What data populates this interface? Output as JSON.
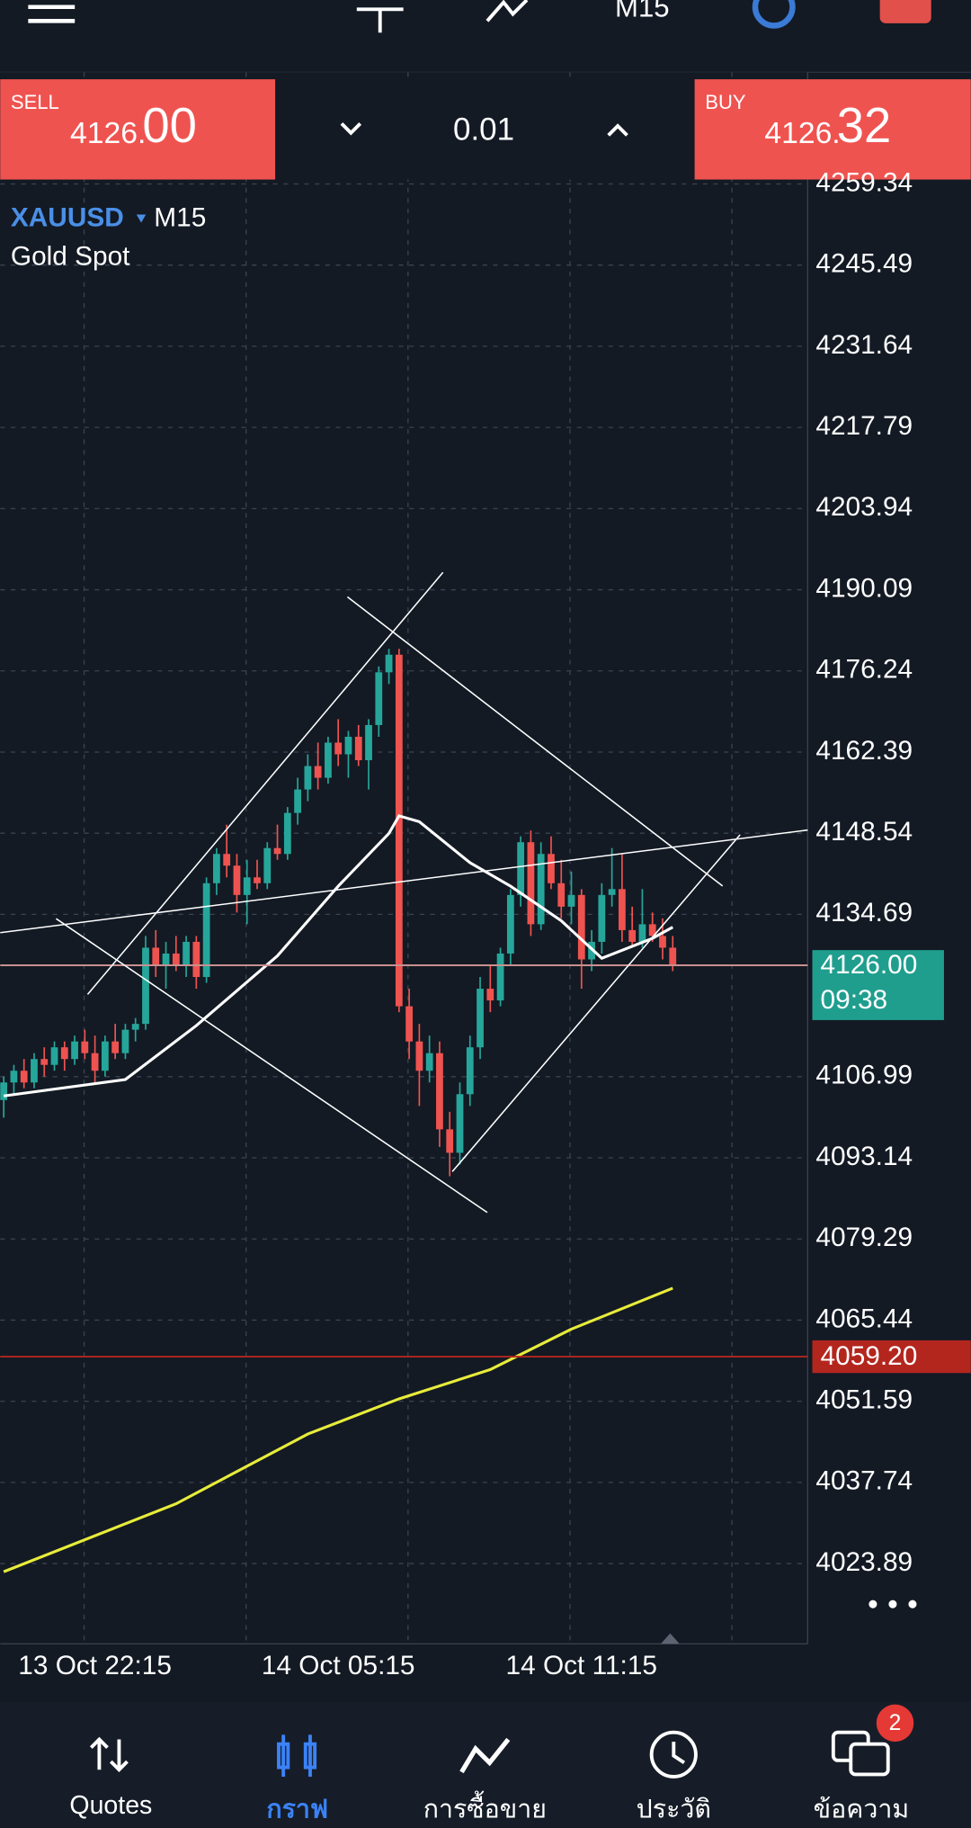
{
  "top_bar": {
    "timeframe": "M15"
  },
  "trade_panel": {
    "sell_label": "SELL",
    "sell_price_small": "4126.",
    "sell_price_large": "00",
    "volume": "0.01",
    "buy_label": "BUY",
    "buy_price_small": "4126.",
    "buy_price_large": "32"
  },
  "chart_data": {
    "type": "candlestick",
    "symbol": "XAUUSD",
    "timeframe": "M15",
    "description": "Gold Spot",
    "categories": [
      null,
      null,
      null,
      null,
      null,
      null,
      null,
      null,
      null,
      "13 Oct 22:15",
      null,
      null,
      null,
      null,
      null,
      null,
      null,
      null,
      null,
      null,
      null,
      null,
      null,
      null,
      null,
      null,
      null,
      null,
      null,
      null,
      null,
      null,
      null,
      "14 Oct 05:15",
      null,
      null,
      null,
      null,
      null,
      null,
      null,
      null,
      null,
      null,
      null,
      null,
      null,
      null,
      null,
      null,
      null,
      null,
      null,
      null,
      null,
      null,
      null,
      "14 Oct 11:15",
      null,
      null,
      null,
      null,
      null,
      null,
      null,
      null,
      null
    ],
    "open": [
      4103,
      4106,
      4108,
      4106,
      4110,
      4109,
      4112,
      4110,
      4113,
      4111,
      4108,
      4113,
      4111,
      4115,
      4116,
      4129,
      4126,
      4128,
      4126,
      4130,
      4124,
      4140,
      4145,
      4143,
      4138,
      4141,
      4140,
      4146,
      4145,
      4152,
      4156,
      4160,
      4158,
      4164,
      4162,
      4165,
      4161,
      4167,
      4176,
      4179,
      4119,
      4113,
      4108,
      4111,
      4098,
      4094,
      4104,
      4112,
      4122,
      4120,
      4128,
      4138,
      4147,
      4133,
      4145,
      4140,
      4136,
      4138,
      4127,
      4130,
      4138,
      4139,
      4132,
      4130,
      4133,
      4131,
      4129
    ],
    "high": [
      4107,
      4109,
      4110,
      4111,
      4112,
      4113,
      4113,
      4114,
      4115,
      4114,
      4114,
      4116,
      4116,
      4117,
      4131,
      4132,
      4130,
      4131,
      4131,
      4131,
      4141,
      4146,
      4150,
      4145,
      4144,
      4144,
      4147,
      4150,
      4153,
      4158,
      4162,
      4164,
      4165,
      4168,
      4166,
      4167,
      4168,
      4177,
      4180,
      4180,
      4122,
      4116,
      4114,
      4113,
      4101,
      4106,
      4114,
      4124,
      4126,
      4129,
      4139,
      4148,
      4149,
      4147,
      4148,
      4144,
      4142,
      4139,
      4132,
      4140,
      4146,
      4145,
      4136,
      4139,
      4135,
      4134,
      4131
    ],
    "low": [
      4100,
      4104,
      4105,
      4105,
      4107,
      4108,
      4108,
      4109,
      4110,
      4106,
      4107,
      4110,
      4110,
      4113,
      4115,
      4124,
      4122,
      4125,
      4124,
      4122,
      4123,
      4138,
      4141,
      4135,
      4133,
      4139,
      4139,
      4144,
      4144,
      4150,
      4154,
      4156,
      4157,
      4160,
      4158,
      4160,
      4156,
      4165,
      4174,
      4118,
      4110,
      4102,
      4106,
      4095,
      4090,
      4092,
      4102,
      4110,
      4118,
      4119,
      4126,
      4136,
      4131,
      4132,
      4139,
      4134,
      4133,
      4122,
      4125,
      4128,
      4136,
      4130,
      4129,
      4129,
      4130,
      4127,
      4125
    ],
    "close": [
      4106,
      4108,
      4106,
      4110,
      4109,
      4112,
      4110,
      4113,
      4111,
      4108,
      4113,
      4111,
      4115,
      4116,
      4129,
      4126,
      4128,
      4126,
      4130,
      4124,
      4140,
      4145,
      4143,
      4138,
      4141,
      4140,
      4146,
      4145,
      4152,
      4156,
      4160,
      4158,
      4164,
      4162,
      4165,
      4161,
      4167,
      4176,
      4179,
      4119,
      4113,
      4108,
      4111,
      4098,
      4094,
      4104,
      4112,
      4122,
      4120,
      4128,
      4138,
      4147,
      4133,
      4145,
      4140,
      4136,
      4138,
      4127,
      4130,
      4138,
      4139,
      4132,
      4130,
      4133,
      4131,
      4129,
      4126
    ],
    "up_color": "#26a69a",
    "down_color": "#ef5350",
    "series": [
      {
        "color": "#ffffff",
        "x": [
          0,
          12,
          19,
          27,
          33,
          38,
          39,
          41,
          46,
          50,
          55,
          59,
          64,
          66
        ],
        "values": [
          4103.7,
          4106.5,
          4115.7,
          4127.6,
          4139.5,
          4148.5,
          4151.5,
          4150.5,
          4143.5,
          4139.5,
          4133.6,
          4127.2,
          4130.6,
          4132.5
        ]
      },
      {
        "color": "#e8ec3a",
        "x": [
          0,
          17,
          30,
          39,
          48,
          56,
          66
        ],
        "values": [
          4022.5,
          4034.1,
          4046,
          4052,
          4057,
          4063.9,
          4070.9
        ]
      }
    ],
    "ylim": [
      4010.2,
      4278.4
    ],
    "yticks": [
      4259.34,
      4245.49,
      4231.64,
      4217.79,
      4203.94,
      4190.09,
      4176.24,
      4162.39,
      4148.54,
      4134.69,
      4106.99,
      4093.14,
      4079.29,
      4065.44,
      4051.59,
      4037.74,
      4023.89
    ],
    "grid": true,
    "price_lines": [
      {
        "value": 4126,
        "label": "4126.00",
        "countdown": "09:38",
        "color": "#c98f8f",
        "box_color": "#1f9e8e"
      },
      {
        "value": 4059.2,
        "label": "4059.20",
        "color": "#b3261e",
        "box_color": "#b3261e"
      }
    ]
  },
  "bottom_nav": {
    "items": [
      "Quotes",
      "กราฟ",
      "การซื้อขาย",
      "ประวัติ",
      "ข้อความ"
    ],
    "badge": "2"
  }
}
